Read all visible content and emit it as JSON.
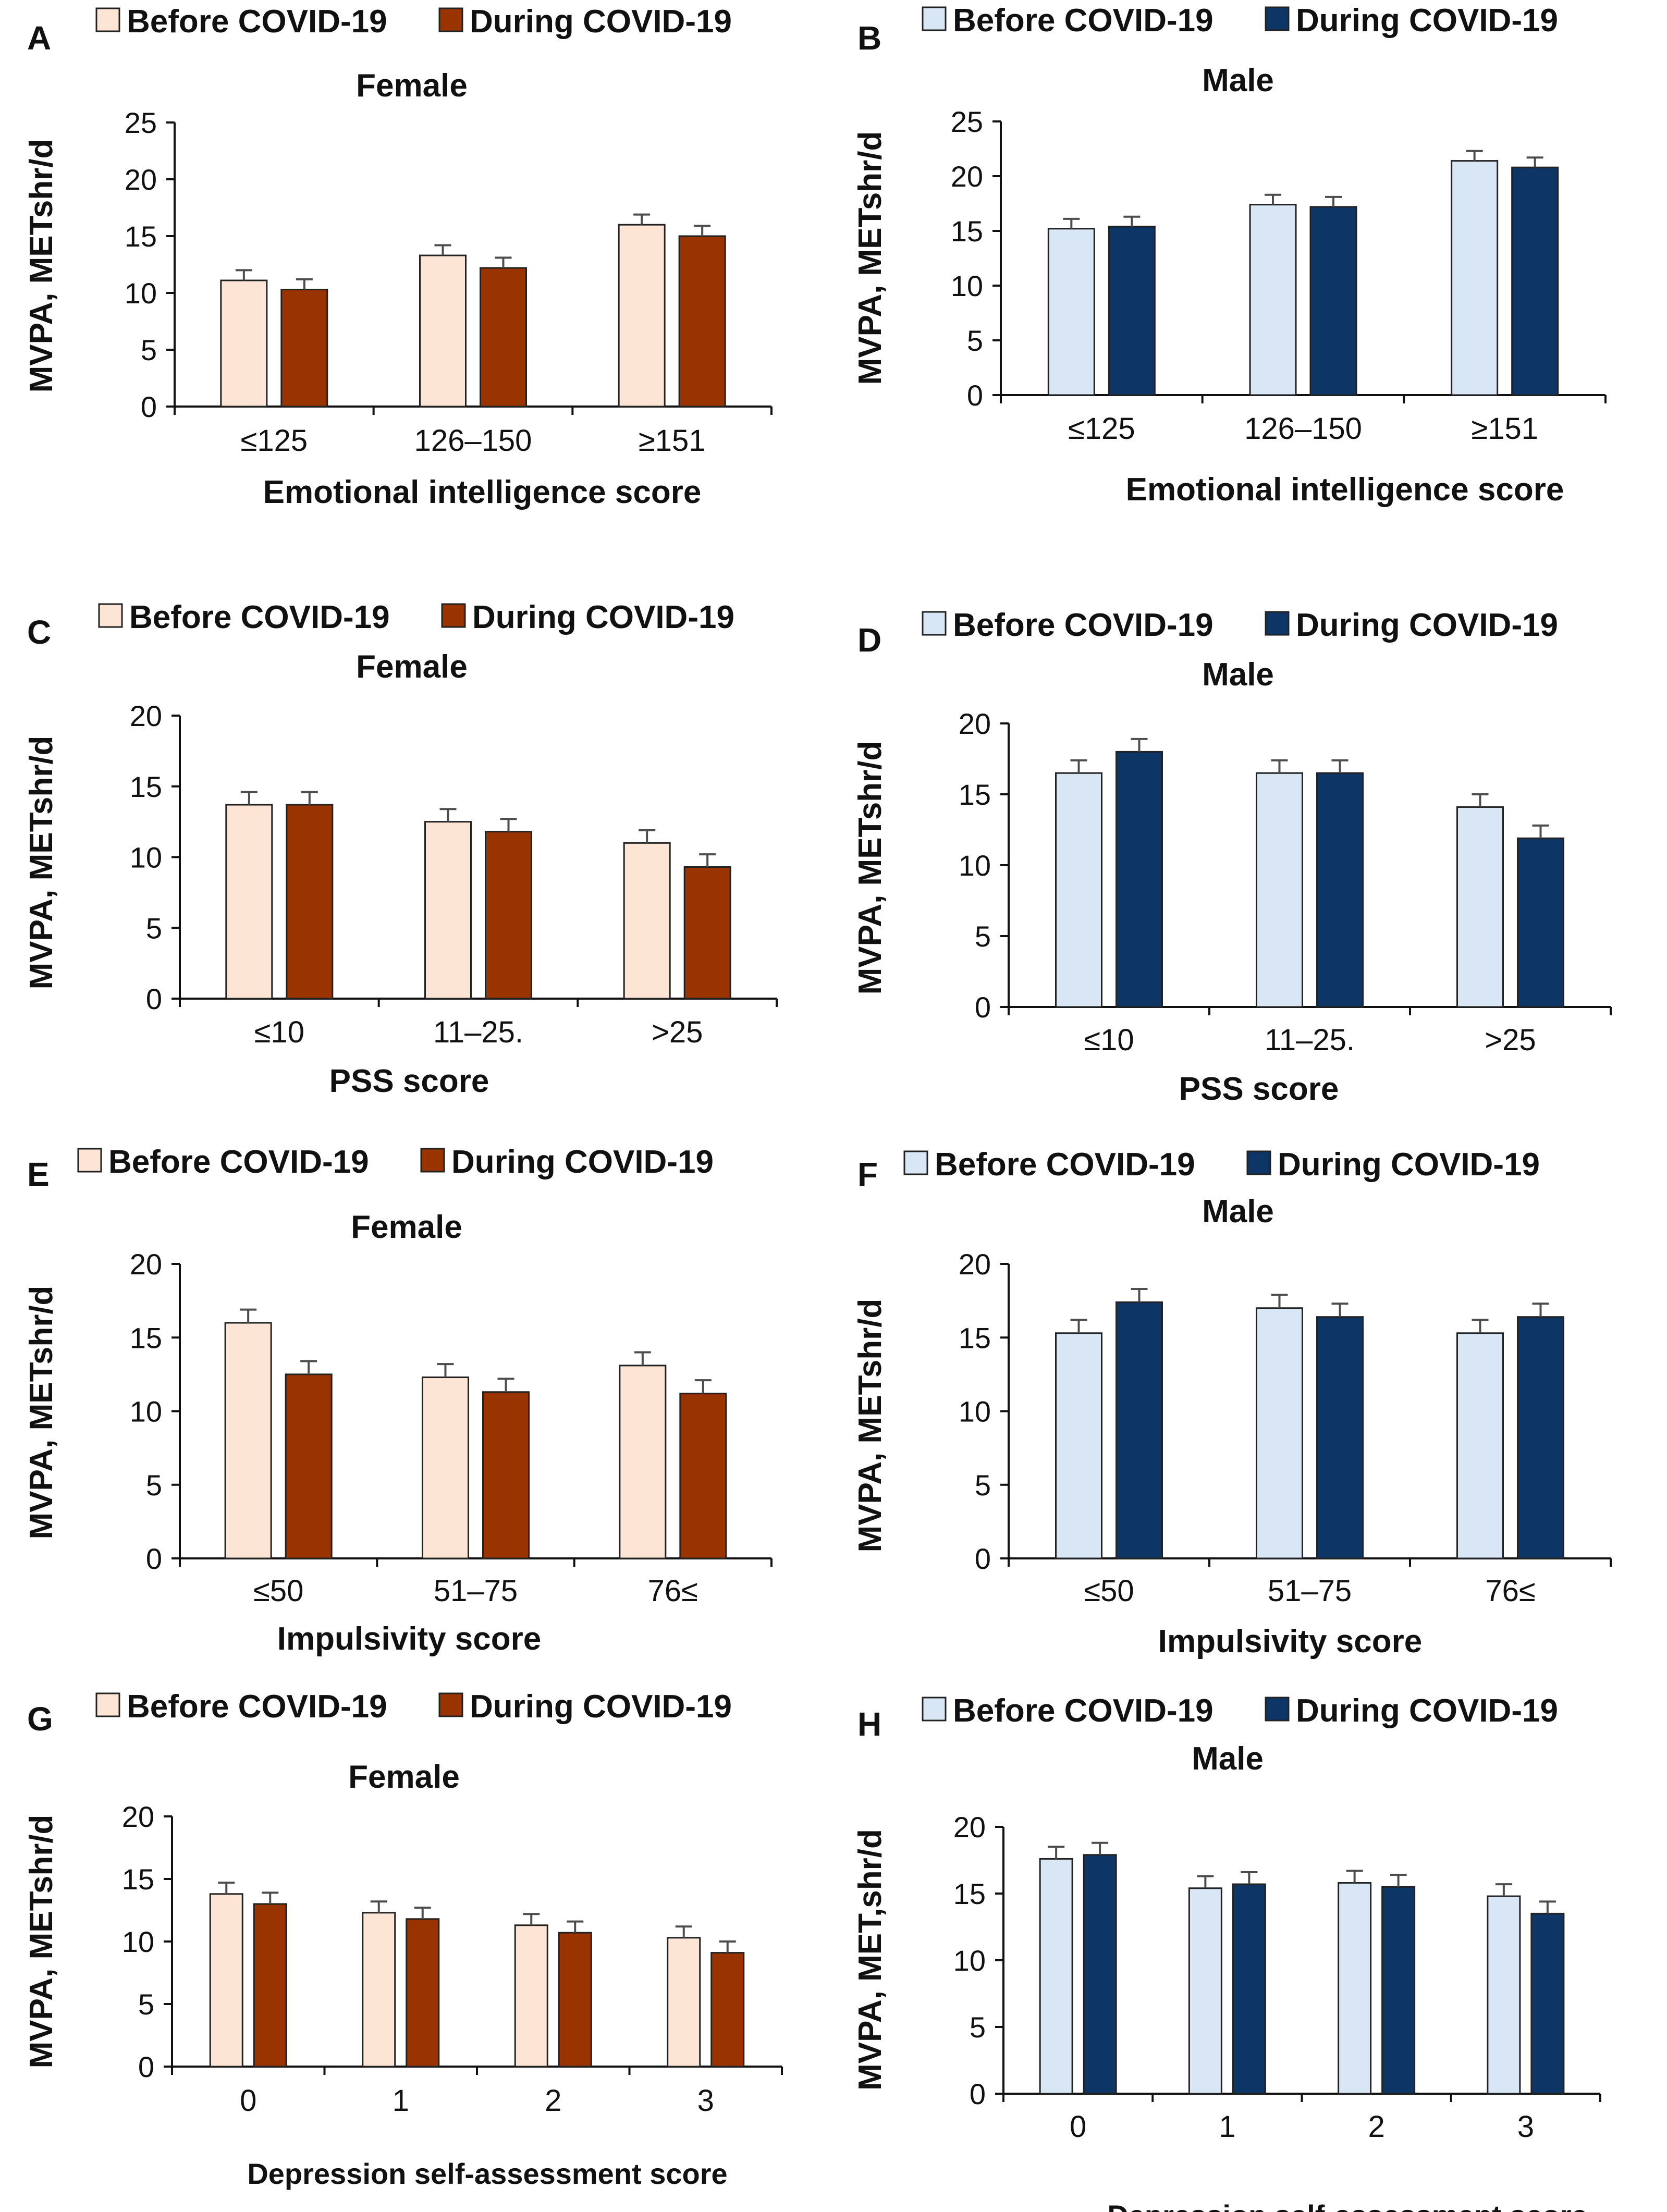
{
  "figure": {
    "colors": {
      "female_before": "#fde5d6",
      "female_during": "#993300",
      "male_before": "#d9e6f6",
      "male_during": "#0d3566",
      "error_bar": "#4d4d4d",
      "axis": "#111111",
      "text": "#111111"
    }
  },
  "chart_data": [
    {
      "panel": "A",
      "type": "bar",
      "title": "Female",
      "legend": [
        "Before COVID-19",
        "During COVID-19"
      ],
      "xlabel": "Emotional intelligence score",
      "ylabel": "MVPA, METshr/d",
      "categories": [
        "≤125",
        "126–150",
        "≥151"
      ],
      "ylim": [
        0,
        25
      ],
      "yticks": [
        0,
        5,
        10,
        15,
        20,
        25
      ],
      "series": [
        {
          "name": "Before COVID-19",
          "values": [
            11.1,
            13.3,
            16.0
          ],
          "errors": [
            0.9,
            0.9,
            0.9
          ]
        },
        {
          "name": "During COVID-19",
          "values": [
            10.3,
            12.2,
            15.0
          ],
          "errors": [
            0.9,
            0.9,
            0.9
          ]
        }
      ]
    },
    {
      "panel": "B",
      "type": "bar",
      "title": "Male",
      "legend": [
        "Before COVID-19",
        "During COVID-19"
      ],
      "xlabel": "Emotional intelligence score",
      "ylabel": "MVPA, METshr/d",
      "categories": [
        "≤125",
        "126–150",
        "≥151"
      ],
      "ylim": [
        0,
        25
      ],
      "yticks": [
        0,
        5,
        10,
        15,
        20,
        25
      ],
      "series": [
        {
          "name": "Before COVID-19",
          "values": [
            15.2,
            17.4,
            21.4
          ],
          "errors": [
            0.9,
            0.9,
            0.9
          ]
        },
        {
          "name": "During COVID-19",
          "values": [
            15.4,
            17.2,
            20.8
          ],
          "errors": [
            0.9,
            0.9,
            0.9
          ]
        }
      ]
    },
    {
      "panel": "C",
      "type": "bar",
      "title": "Female",
      "legend": [
        "Before COVID-19",
        "During COVID-19"
      ],
      "xlabel": "PSS score",
      "ylabel": "MVPA, METshr/d",
      "categories": [
        "≤10",
        "11–25.",
        ">25"
      ],
      "ylim": [
        0,
        20
      ],
      "yticks": [
        0,
        5,
        10,
        15,
        20
      ],
      "series": [
        {
          "name": "Before COVID-19",
          "values": [
            13.7,
            12.5,
            11.0
          ],
          "errors": [
            0.9,
            0.9,
            0.9
          ]
        },
        {
          "name": "During COVID-19",
          "values": [
            13.7,
            11.8,
            9.3
          ],
          "errors": [
            0.9,
            0.9,
            0.9
          ]
        }
      ]
    },
    {
      "panel": "D",
      "type": "bar",
      "title": "Male",
      "legend": [
        "Before COVID-19",
        "During COVID-19"
      ],
      "xlabel": "PSS score",
      "ylabel": "MVPA, METshr/d",
      "categories": [
        "≤10",
        "11–25.",
        ">25"
      ],
      "ylim": [
        0,
        20
      ],
      "yticks": [
        0,
        5,
        10,
        15,
        20
      ],
      "series": [
        {
          "name": "Before COVID-19",
          "values": [
            16.5,
            16.5,
            14.1
          ],
          "errors": [
            0.9,
            0.9,
            0.9
          ]
        },
        {
          "name": "During COVID-19",
          "values": [
            18.0,
            16.5,
            11.9
          ],
          "errors": [
            0.9,
            0.9,
            0.9
          ]
        }
      ]
    },
    {
      "panel": "E",
      "type": "bar",
      "title": "Female",
      "legend": [
        "Before COVID-19",
        "During COVID-19"
      ],
      "xlabel": "Impulsivity score",
      "ylabel": "MVPA, METshr/d",
      "categories": [
        "≤50",
        "51–75",
        "76≤"
      ],
      "ylim": [
        0,
        20
      ],
      "yticks": [
        0,
        5,
        10,
        15,
        20
      ],
      "series": [
        {
          "name": "Before COVID-19",
          "values": [
            16.0,
            12.3,
            13.1
          ],
          "errors": [
            0.9,
            0.9,
            0.9
          ]
        },
        {
          "name": "During COVID-19",
          "values": [
            12.5,
            11.3,
            11.2
          ],
          "errors": [
            0.9,
            0.9,
            0.9
          ]
        }
      ]
    },
    {
      "panel": "F",
      "type": "bar",
      "title": "Male",
      "legend": [
        "Before COVID-19",
        "During COVID-19"
      ],
      "xlabel": "Impulsivity score",
      "ylabel": "MVPA, METshr/d",
      "categories": [
        "≤50",
        "51–75",
        "76≤"
      ],
      "ylim": [
        0,
        20
      ],
      "yticks": [
        0,
        5,
        10,
        15,
        20
      ],
      "series": [
        {
          "name": "Before COVID-19",
          "values": [
            15.3,
            17.0,
            15.3
          ],
          "errors": [
            0.9,
            0.9,
            0.9
          ]
        },
        {
          "name": "During COVID-19",
          "values": [
            17.4,
            16.4,
            16.4
          ],
          "errors": [
            0.9,
            0.9,
            0.9
          ]
        }
      ]
    },
    {
      "panel": "G",
      "type": "bar",
      "title": "Female",
      "legend": [
        "Before COVID-19",
        "During COVID-19"
      ],
      "xlabel": "Depression self-assessment score",
      "ylabel": "MVPA, METshr/d",
      "categories": [
        "0",
        "1",
        "2",
        "3"
      ],
      "ylim": [
        0,
        20
      ],
      "yticks": [
        0,
        5,
        10,
        15,
        20
      ],
      "series": [
        {
          "name": "Before COVID-19",
          "values": [
            13.8,
            12.3,
            11.3,
            10.3
          ],
          "errors": [
            0.9,
            0.9,
            0.9,
            0.9
          ]
        },
        {
          "name": "During COVID-19",
          "values": [
            13.0,
            11.8,
            10.7,
            9.1
          ],
          "errors": [
            0.9,
            0.9,
            0.9,
            0.9
          ]
        }
      ]
    },
    {
      "panel": "H",
      "type": "bar",
      "title": "Male",
      "legend": [
        "Before COVID-19",
        "During COVID-19"
      ],
      "xlabel": "Depression self-assessment score",
      "ylabel": "MVPA, MET,shr/d",
      "categories": [
        "0",
        "1",
        "2",
        "3"
      ],
      "ylim": [
        0,
        20
      ],
      "yticks": [
        0,
        5,
        10,
        15,
        20
      ],
      "series": [
        {
          "name": "Before COVID-19",
          "values": [
            17.6,
            15.4,
            15.8,
            14.8
          ],
          "errors": [
            0.9,
            0.9,
            0.9,
            0.9
          ]
        },
        {
          "name": "During COVID-19",
          "values": [
            17.9,
            15.7,
            15.5,
            13.5
          ],
          "errors": [
            0.9,
            0.9,
            0.9,
            0.9
          ]
        }
      ]
    }
  ]
}
